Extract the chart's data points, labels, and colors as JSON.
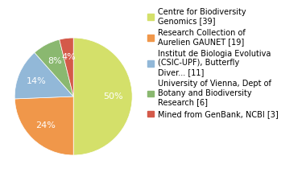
{
  "labels": [
    "Centre for Biodiversity\nGenomics [39]",
    "Research Collection of\nAurelien GAUNET [19]",
    "Institut de Biologia Evolutiva\n(CSIC-UPF), Butterfly\nDiver... [11]",
    "University of Vienna, Dept of\nBotany and Biodiversity\nResearch [6]",
    "Mined from GenBank, NCBI [3]"
  ],
  "values": [
    39,
    19,
    11,
    6,
    3
  ],
  "colors": [
    "#d4e06a",
    "#f0974a",
    "#92b8d8",
    "#8ab870",
    "#d45a4a"
  ],
  "startangle": 90,
  "text_color": "white",
  "background_color": "#ffffff",
  "legend_fontsize": 7.0,
  "pct_fontsize": 8.0
}
